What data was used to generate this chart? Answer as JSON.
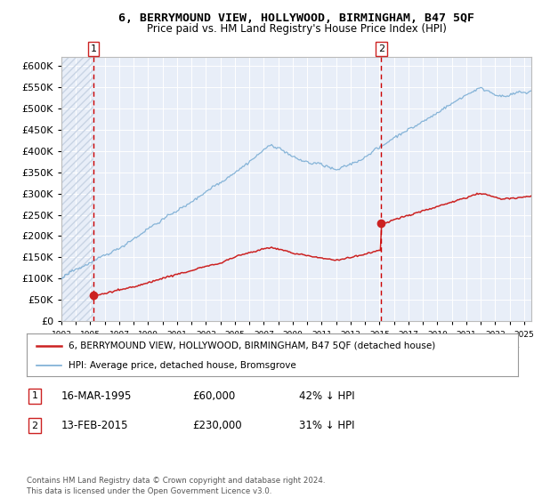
{
  "title": "6, BERRYMOUND VIEW, HOLLYWOOD, BIRMINGHAM, B47 5QF",
  "subtitle": "Price paid vs. HM Land Registry's House Price Index (HPI)",
  "legend_line1": "6, BERRYMOUND VIEW, HOLLYWOOD, BIRMINGHAM, B47 5QF (detached house)",
  "legend_line2": "HPI: Average price, detached house, Bromsgrove",
  "ann1_label": "1",
  "ann1_date": "16-MAR-1995",
  "ann1_price": "£60,000",
  "ann1_hpi": "42% ↓ HPI",
  "ann1_year": 1995.21,
  "ann1_price_val": 60000,
  "ann2_label": "2",
  "ann2_date": "13-FEB-2015",
  "ann2_price": "£230,000",
  "ann2_hpi": "31% ↓ HPI",
  "ann2_year": 2015.12,
  "ann2_price_val": 230000,
  "footer": "Contains HM Land Registry data © Crown copyright and database right 2024.\nThis data is licensed under the Open Government Licence v3.0.",
  "hpi_color": "#7aadd4",
  "sale_color": "#cc2222",
  "vline_color": "#cc0000",
  "bg_color": "#e8eef8",
  "hatch_color": "#c8d4e4",
  "grid_color": "#ffffff",
  "ylim_max": 620000,
  "xlim_min": 1993,
  "xlim_max": 2025.5
}
